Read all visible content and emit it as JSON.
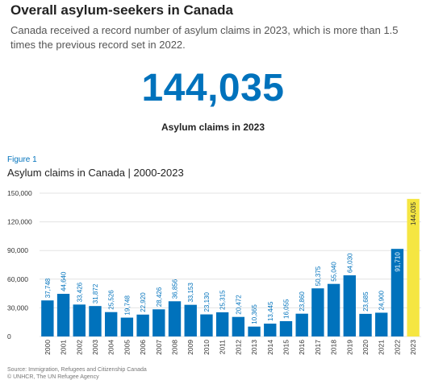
{
  "header": {
    "title": "Overall asylum-seekers in Canada",
    "subtitle": "Canada received a record number of asylum claims in 2023, which is more than 1.5 times the previous record set in 2022."
  },
  "highlight": {
    "number": "144,035",
    "caption": "Asylum claims in 2023"
  },
  "figure": {
    "label": "Figure 1",
    "title": "Asylum claims in Canada | 2000-2023"
  },
  "source": {
    "line1": "Source: Immigration, Refugees and Citizenship Canada",
    "line2": "© UNHCR, The UN Refugee Agency"
  },
  "colors": {
    "bar": "#0072bc",
    "highlight_bar": "#f5e642",
    "grid": "#e3e3e3",
    "axis_text": "#333333"
  },
  "chart_data": {
    "type": "bar",
    "categories": [
      "2000",
      "2001",
      "2002",
      "2003",
      "2004",
      "2005",
      "2006",
      "2007",
      "2008",
      "2009",
      "2010",
      "2011",
      "2012",
      "2013",
      "2014",
      "2015",
      "2016",
      "2017",
      "2018",
      "2019",
      "2020",
      "2021",
      "2022",
      "2023"
    ],
    "values": [
      37748,
      44640,
      33426,
      31872,
      25526,
      19748,
      22920,
      28426,
      36856,
      33153,
      23130,
      25315,
      20472,
      10365,
      13445,
      16055,
      23860,
      50375,
      55040,
      64030,
      23685,
      24900,
      91710,
      144035
    ],
    "value_labels": [
      "37,748",
      "44,640",
      "33,426",
      "31,872",
      "25,526",
      "19,748",
      "22,920",
      "28,426",
      "36,856",
      "33,153",
      "23,130",
      "25,315",
      "20,472",
      "10,365",
      "13,445",
      "16,055",
      "23,860",
      "50,375",
      "55,040",
      "64,030",
      "23,685",
      "24,900",
      "91,710",
      "144,035"
    ],
    "highlight_category": "2023",
    "y_ticks": [
      "150,000",
      "120,000",
      "90,000",
      "60,000",
      "30,000",
      "0"
    ],
    "ylim": [
      0,
      150000
    ],
    "grid": true,
    "title": "Asylum claims in Canada | 2000-2023",
    "xlabel": "",
    "ylabel": ""
  }
}
